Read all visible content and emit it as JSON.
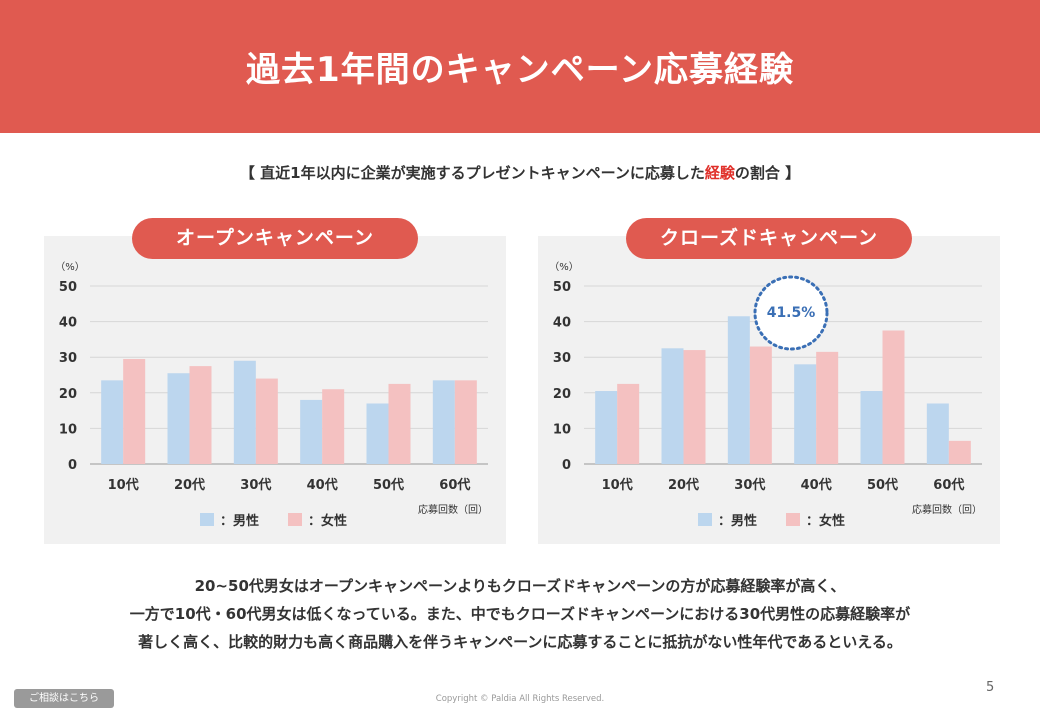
{
  "header": {
    "title": "過去1年間のキャンペーン応募経験"
  },
  "subtitle": {
    "prefix": "【 直近1年以内に企業が実施するプレゼントキャンペーンに応募した",
    "highlight": "経験",
    "suffix": "の割合 】"
  },
  "colors": {
    "male": "#bcd6ee",
    "female": "#f4c1c1",
    "accent": "#e05a50",
    "callout": "#3a6fb5"
  },
  "chart_data": [
    {
      "type": "bar",
      "title": "オープンキャンペーン",
      "ylabel": "（%）",
      "xlabel": "応募回数（回）",
      "ylim": [
        0,
        50
      ],
      "yticks": [
        0,
        10,
        20,
        30,
        40,
        50
      ],
      "categories": [
        "10代",
        "20代",
        "30代",
        "40代",
        "50代",
        "60代"
      ],
      "series": [
        {
          "name": "：男性",
          "values": [
            23.5,
            25.5,
            29,
            18,
            17,
            23.5
          ]
        },
        {
          "name": "：女性",
          "values": [
            29.5,
            27.5,
            24,
            21,
            22.5,
            23.5
          ]
        }
      ],
      "grid": true,
      "legend": "bottom"
    },
    {
      "type": "bar",
      "title": "クローズドキャンペーン",
      "ylabel": "（%）",
      "xlabel": "応募回数（回）",
      "ylim": [
        0,
        50
      ],
      "yticks": [
        0,
        10,
        20,
        30,
        40,
        50
      ],
      "categories": [
        "10代",
        "20代",
        "30代",
        "40代",
        "50代",
        "60代"
      ],
      "series": [
        {
          "name": "：男性",
          "values": [
            20.5,
            32.5,
            41.5,
            28,
            20.5,
            17
          ]
        },
        {
          "name": "：女性",
          "values": [
            22.5,
            32,
            33,
            31.5,
            37.5,
            6.5
          ]
        }
      ],
      "grid": true,
      "legend": "bottom",
      "callout": "41.5%"
    }
  ],
  "summary": [
    "20~50代男女はオープンキャンペーンよりもクローズドキャンペーンの方が応募経験率が高く、",
    "一方で10代・60代男女は低くなっている。また、中でもクローズドキャンペーンにおける30代男性の応募経験率が",
    "著しく高く、比較的財力も高く商品購入を伴うキャンペーンに応募することに抵抗がない性年代であるといえる。"
  ],
  "footer": {
    "page_number": "5",
    "copyright": "Copyright © Paldia All Rights Reserved.",
    "consult_button": "ご相談はこちら"
  }
}
